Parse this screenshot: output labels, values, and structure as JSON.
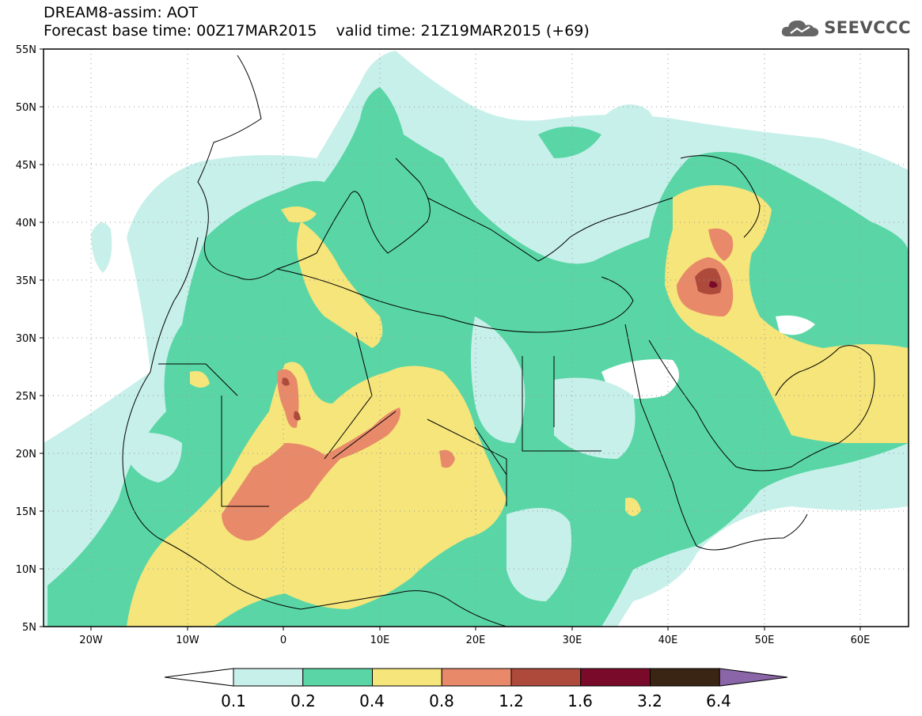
{
  "header": {
    "title_line1": "DREAM8-assim: AOT",
    "title_line2": "Forecast base time: 00Z17MAR2015    valid time: 21Z19MAR2015 (+69)",
    "logo_text": "SEEVCCC",
    "logo_icon": "cloud-icon"
  },
  "map_data": {
    "variable": "AOT",
    "lon_range": [
      -25,
      65
    ],
    "lat_range": [
      5,
      55
    ],
    "lon_ticks": [
      "20W",
      "10W",
      "0",
      "10E",
      "20E",
      "30E",
      "40E",
      "50E",
      "60E"
    ],
    "lat_ticks": [
      "5N",
      "10N",
      "15N",
      "20N",
      "25N",
      "30N",
      "35N",
      "40N",
      "45N",
      "50N",
      "55N"
    ],
    "grid": "dotted"
  },
  "colorbar": {
    "labels": [
      "0.1",
      "0.2",
      "0.4",
      "0.8",
      "1.2",
      "1.6",
      "3.2",
      "6.4"
    ],
    "colors": [
      "#c8f0ea",
      "#5ad6a6",
      "#f5e57a",
      "#e8896a",
      "#ad4a3c",
      "#7a0a2a",
      "#3a2414",
      "#8a66a8"
    ]
  }
}
